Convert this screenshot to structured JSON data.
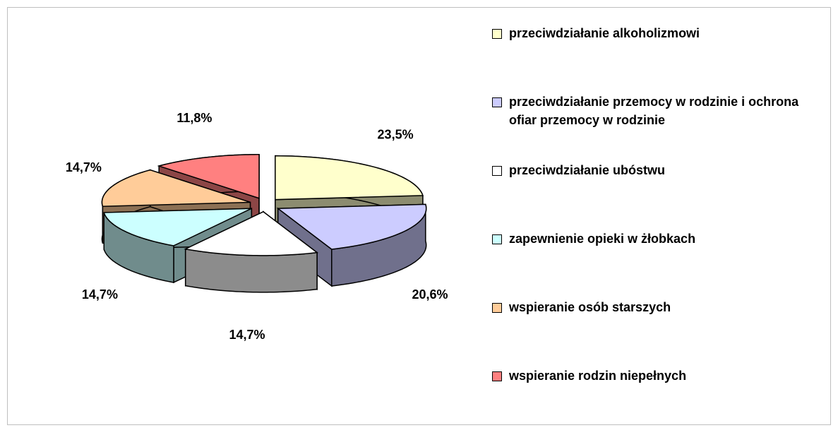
{
  "chart_data": {
    "type": "pie",
    "categories": [
      "przeciwdziałanie alkoholizmowi",
      "przeciwdziałanie przemocy w rodzinie i ochrona ofiar przemocy w rodzinie",
      "przeciwdziałanie ubóstwu",
      "zapewnienie opieki w żłobkach",
      "wspieranie osób starszych",
      "wspieranie rodzin niepełnych"
    ],
    "values": [
      23.5,
      20.6,
      14.7,
      14.7,
      14.7,
      11.8
    ],
    "value_labels": [
      "23,5%",
      "20,6%",
      "14,7%",
      "14,7%",
      "14,7%",
      "11,8%"
    ],
    "colors": [
      "#ffffcc",
      "#ccccff",
      "#ffffff",
      "#ccffff",
      "#ffcc99",
      "#ff8080"
    ],
    "legend": "right"
  }
}
